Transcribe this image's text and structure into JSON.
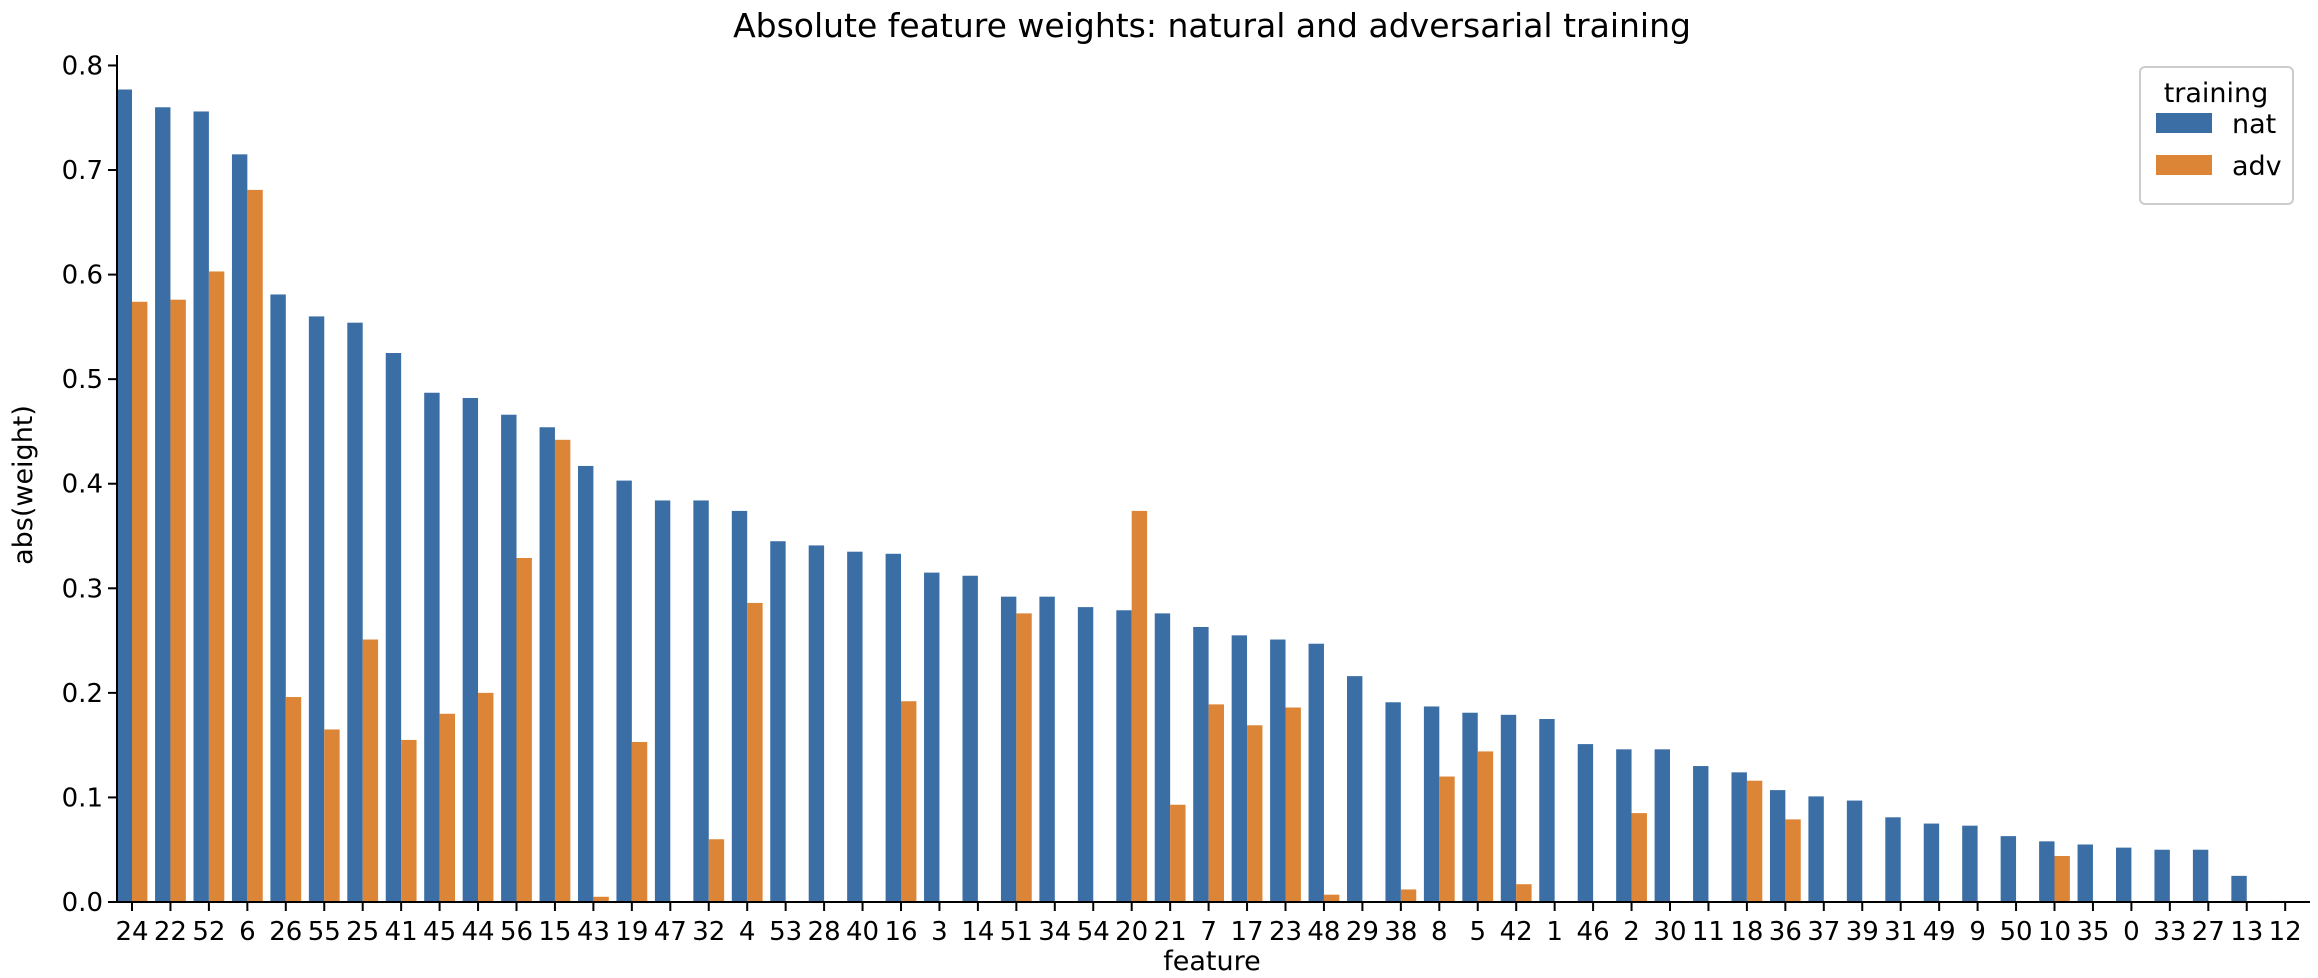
{
  "chart_data": {
    "type": "bar",
    "title": "Absolute feature weights: natural and adversarial training",
    "xlabel": "feature",
    "ylabel": "abs(weight)",
    "ylim": [
      0,
      0.81
    ],
    "yticks": [
      "0.0",
      "0.1",
      "0.2",
      "0.3",
      "0.4",
      "0.5",
      "0.6",
      "0.7",
      "0.8"
    ],
    "grid": false,
    "legend": {
      "title": "training",
      "placement": "top-right"
    },
    "categories": [
      "24",
      "22",
      "52",
      "6",
      "26",
      "55",
      "25",
      "41",
      "45",
      "44",
      "56",
      "15",
      "43",
      "19",
      "47",
      "32",
      "4",
      "53",
      "28",
      "40",
      "16",
      "3",
      "14",
      "51",
      "34",
      "54",
      "20",
      "21",
      "7",
      "17",
      "23",
      "48",
      "29",
      "38",
      "8",
      "5",
      "42",
      "1",
      "46",
      "2",
      "30",
      "11",
      "18",
      "36",
      "37",
      "39",
      "31",
      "49",
      "9",
      "50",
      "10",
      "35",
      "0",
      "33",
      "27",
      "13",
      "12"
    ],
    "series": [
      {
        "name": "nat",
        "color": "#3a6ea5",
        "values": [
          0.777,
          0.76,
          0.756,
          0.715,
          0.581,
          0.56,
          0.554,
          0.525,
          0.487,
          0.482,
          0.466,
          0.454,
          0.417,
          0.403,
          0.384,
          0.384,
          0.374,
          0.345,
          0.341,
          0.335,
          0.333,
          0.315,
          0.312,
          0.292,
          0.292,
          0.282,
          0.279,
          0.276,
          0.263,
          0.255,
          0.251,
          0.247,
          0.216,
          0.191,
          0.187,
          0.181,
          0.179,
          0.175,
          0.151,
          0.146,
          0.146,
          0.13,
          0.124,
          0.107,
          0.101,
          0.097,
          0.081,
          0.075,
          0.073,
          0.063,
          0.058,
          0.055,
          0.052,
          0.05,
          0.05,
          0.025,
          0.001
        ]
      },
      {
        "name": "adv",
        "color": "#dd8536",
        "values": [
          0.574,
          0.576,
          0.603,
          0.681,
          0.196,
          0.165,
          0.251,
          0.155,
          0.18,
          0.2,
          0.329,
          0.442,
          0.005,
          0.153,
          0.0,
          0.06,
          0.286,
          0.0,
          0.0,
          0.0,
          0.192,
          0.0,
          0.0,
          0.276,
          0.0,
          0.0,
          0.374,
          0.093,
          0.189,
          0.169,
          0.186,
          0.007,
          0.0,
          0.012,
          0.12,
          0.144,
          0.017,
          0.0,
          0.0,
          0.085,
          0.0,
          0.0,
          0.116,
          0.079,
          0.0,
          0.0,
          0.0,
          0.0,
          0.0,
          0.0,
          0.044,
          0.0,
          0.0,
          0.0,
          0.0,
          0.0,
          0.0
        ]
      }
    ]
  }
}
